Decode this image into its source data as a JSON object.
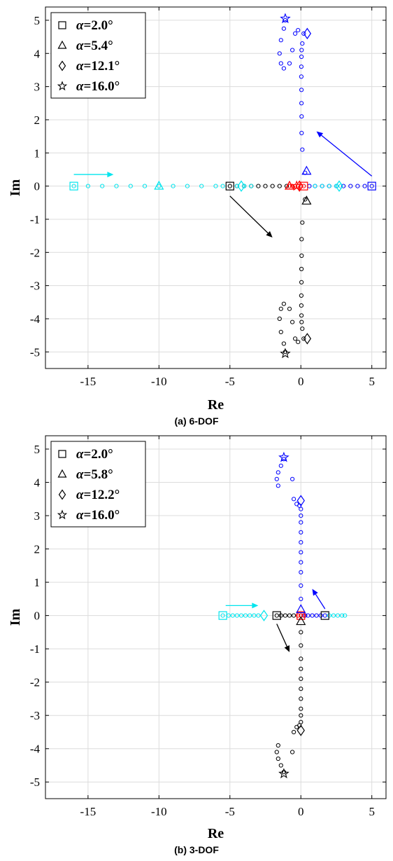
{
  "chart_data": [
    {
      "type": "scatter",
      "caption": "(a) 6-DOF",
      "xlabel": "Re",
      "ylabel": "Im",
      "xlim": [
        -18,
        6
      ],
      "ylim": [
        -5.5,
        5.4
      ],
      "xticks": [
        -15,
        -10,
        -5,
        0,
        5
      ],
      "yticks": [
        5,
        4,
        3,
        2,
        1,
        0,
        -1,
        -2,
        -3,
        -4,
        -5
      ],
      "xtick_labels": [
        "-15",
        "-10",
        "-5",
        "0",
        "5"
      ],
      "ytick_labels": [
        "5",
        "4",
        "3",
        "2",
        "1",
        "0",
        "-1",
        "-2",
        "-3",
        "-4",
        "-5"
      ],
      "grid": true,
      "legend_position": "top-left",
      "legend": [
        {
          "marker": "square",
          "symbol": "α",
          "label": "=2.0°"
        },
        {
          "marker": "triangle",
          "symbol": "α",
          "label": "=5.4°"
        },
        {
          "marker": "diamond",
          "symbol": "α",
          "label": "=12.1°"
        },
        {
          "marker": "star",
          "symbol": "α",
          "label": "=16.0°"
        }
      ],
      "colors": {
        "blue": "#0000ff",
        "black": "#000000",
        "cyan": "#00e5ee",
        "red": "#ff0000"
      },
      "series": [
        {
          "color": "blue",
          "points": [
            [
              5,
              0
            ],
            [
              4.5,
              0
            ],
            [
              4,
              0
            ],
            [
              3.5,
              0
            ],
            [
              3,
              0
            ],
            [
              2.5,
              0
            ],
            [
              2,
              0
            ],
            [
              1.5,
              0
            ],
            [
              1,
              0
            ],
            [
              0.6,
              0
            ],
            [
              0.3,
              0.4
            ],
            [
              0.1,
              1.1
            ],
            [
              0.05,
              1.6
            ],
            [
              0.05,
              2.1
            ],
            [
              0.04,
              2.5
            ],
            [
              0.04,
              2.9
            ],
            [
              0.03,
              3.3
            ],
            [
              0.03,
              3.6
            ],
            [
              0.04,
              3.9
            ],
            [
              0.05,
              4.1
            ],
            [
              0.1,
              4.3
            ],
            [
              0.2,
              4.6
            ],
            [
              -0.2,
              4.7
            ],
            [
              -0.4,
              4.6
            ],
            [
              -0.6,
              4.1
            ],
            [
              -0.8,
              3.7
            ],
            [
              -1.2,
              3.55
            ],
            [
              -1.4,
              3.7
            ],
            [
              -1.5,
              4.0
            ],
            [
              -1.4,
              4.4
            ],
            [
              -1.2,
              4.75
            ],
            [
              -1.1,
              5.0
            ]
          ]
        },
        {
          "color": "black",
          "points": [
            [
              -5,
              0
            ],
            [
              -4.5,
              0
            ],
            [
              -4,
              0
            ],
            [
              -3.5,
              0
            ],
            [
              -3,
              0
            ],
            [
              -2.5,
              0
            ],
            [
              -2,
              0
            ],
            [
              -1.5,
              0
            ],
            [
              -1,
              0
            ],
            [
              0.3,
              -0.4
            ],
            [
              0.1,
              -1.1
            ],
            [
              0.05,
              -1.6
            ],
            [
              0.05,
              -2.1
            ],
            [
              0.04,
              -2.5
            ],
            [
              0.04,
              -2.9
            ],
            [
              0.03,
              -3.3
            ],
            [
              0.03,
              -3.6
            ],
            [
              0.04,
              -3.9
            ],
            [
              0.05,
              -4.1
            ],
            [
              0.1,
              -4.3
            ],
            [
              0.2,
              -4.6
            ],
            [
              -0.2,
              -4.7
            ],
            [
              -0.4,
              -4.6
            ],
            [
              -0.6,
              -4.1
            ],
            [
              -0.8,
              -3.7
            ],
            [
              -1.2,
              -3.55
            ],
            [
              -1.4,
              -3.7
            ],
            [
              -1.5,
              -4.0
            ],
            [
              -1.4,
              -4.4
            ],
            [
              -1.2,
              -4.75
            ],
            [
              -1.1,
              -5.0
            ]
          ]
        },
        {
          "color": "cyan",
          "points": [
            [
              -16,
              0
            ],
            [
              -15,
              0
            ],
            [
              -14,
              0
            ],
            [
              -13,
              0
            ],
            [
              -12,
              0
            ],
            [
              -11,
              0
            ],
            [
              -10,
              0
            ],
            [
              -9,
              0
            ],
            [
              -8,
              0
            ],
            [
              -7,
              0
            ],
            [
              -6,
              0
            ],
            [
              -5.5,
              0
            ],
            [
              -4.5,
              0
            ],
            [
              -4,
              0
            ],
            [
              -3.5,
              0
            ],
            [
              1,
              0
            ],
            [
              1.5,
              0
            ],
            [
              2,
              0
            ],
            [
              2.5,
              0
            ],
            [
              2.8,
              0
            ]
          ]
        },
        {
          "color": "red",
          "points": [
            [
              -0.8,
              0
            ],
            [
              -0.6,
              0
            ],
            [
              -0.4,
              0
            ],
            [
              -0.2,
              0
            ],
            [
              0,
              0
            ],
            [
              0.2,
              0
            ]
          ]
        }
      ],
      "markers": [
        {
          "type": "square",
          "color": "cyan",
          "x": -16,
          "y": 0
        },
        {
          "type": "square",
          "color": "black",
          "x": -5,
          "y": 0
        },
        {
          "type": "square",
          "color": "blue",
          "x": 5,
          "y": 0
        },
        {
          "type": "square",
          "color": "red",
          "x": 0.2,
          "y": 0
        },
        {
          "type": "triangle",
          "color": "cyan",
          "x": -10,
          "y": 0
        },
        {
          "type": "triangle",
          "color": "red",
          "x": -0.8,
          "y": 0
        },
        {
          "type": "triangle",
          "color": "blue",
          "x": 0.4,
          "y": 0.45
        },
        {
          "type": "triangle",
          "color": "black",
          "x": 0.4,
          "y": -0.45
        },
        {
          "type": "diamond",
          "color": "cyan",
          "x": -4.2,
          "y": 0
        },
        {
          "type": "diamond",
          "color": "cyan",
          "x": 2.7,
          "y": 0
        },
        {
          "type": "diamond",
          "color": "red",
          "x": -0.1,
          "y": 0
        },
        {
          "type": "diamond",
          "color": "blue",
          "x": 0.45,
          "y": 4.6
        },
        {
          "type": "diamond",
          "color": "black",
          "x": 0.45,
          "y": -4.6
        },
        {
          "type": "star",
          "color": "blue",
          "x": -1.1,
          "y": 5.05
        },
        {
          "type": "star",
          "color": "black",
          "x": -1.1,
          "y": -5.05
        },
        {
          "type": "star",
          "color": "red",
          "x": -0.3,
          "y": 0
        }
      ],
      "arrows": [
        {
          "color": "cyan",
          "from": [
            -16,
            0.35
          ],
          "to": [
            -13.2,
            0.35
          ]
        },
        {
          "color": "blue",
          "from": [
            5,
            0.3
          ],
          "to": [
            1.1,
            1.65
          ]
        },
        {
          "color": "black",
          "from": [
            -5,
            -0.3
          ],
          "to": [
            -2,
            -1.55
          ]
        }
      ]
    },
    {
      "type": "scatter",
      "caption": "(b) 3-DOF",
      "xlabel": "Re",
      "ylabel": "Im",
      "xlim": [
        -18,
        6
      ],
      "ylim": [
        -5.5,
        5.4
      ],
      "xticks": [
        -15,
        -10,
        -5,
        0,
        5
      ],
      "yticks": [
        5,
        4,
        3,
        2,
        1,
        0,
        -1,
        -2,
        -3,
        -4,
        -5
      ],
      "xtick_labels": [
        "-15",
        "-10",
        "-5",
        "0",
        "5"
      ],
      "ytick_labels": [
        "5",
        "4",
        "3",
        "2",
        "1",
        "0",
        "-1",
        "-2",
        "-3",
        "-4",
        "-5"
      ],
      "grid": true,
      "legend_position": "top-left",
      "legend": [
        {
          "marker": "square",
          "symbol": "α",
          "label": "=2.0°"
        },
        {
          "marker": "triangle",
          "symbol": "α",
          "label": "=5.8°"
        },
        {
          "marker": "diamond",
          "symbol": "α",
          "label": "=12.2°"
        },
        {
          "marker": "star",
          "symbol": "α",
          "label": "=16.0°"
        }
      ],
      "colors": {
        "blue": "#0000ff",
        "black": "#000000",
        "cyan": "#00e5ee",
        "red": "#ff0000"
      },
      "series": [
        {
          "color": "blue",
          "points": [
            [
              1.7,
              0
            ],
            [
              1.4,
              0
            ],
            [
              1.1,
              0
            ],
            [
              0.8,
              0
            ],
            [
              0.5,
              0
            ],
            [
              0.3,
              0
            ],
            [
              0.0,
              0.5
            ],
            [
              0,
              0.9
            ],
            [
              0,
              1.3
            ],
            [
              0,
              1.6
            ],
            [
              0,
              1.9
            ],
            [
              0,
              2.2
            ],
            [
              0,
              2.5
            ],
            [
              0,
              2.8
            ],
            [
              0,
              3.0
            ],
            [
              0,
              3.2
            ],
            [
              -0.1,
              3.3
            ],
            [
              -0.3,
              3.35
            ],
            [
              -0.5,
              3.5
            ],
            [
              -0.6,
              4.1
            ],
            [
              -1.6,
              3.9
            ],
            [
              -1.7,
              4.1
            ],
            [
              -1.6,
              4.3
            ],
            [
              -1.4,
              4.5
            ],
            [
              -1.2,
              4.7
            ]
          ]
        },
        {
          "color": "black",
          "points": [
            [
              -1.7,
              0
            ],
            [
              -1.4,
              0
            ],
            [
              -1.1,
              0
            ],
            [
              -0.8,
              0
            ],
            [
              -0.5,
              0
            ],
            [
              0,
              -0.5
            ],
            [
              0,
              -0.9
            ],
            [
              0,
              -1.3
            ],
            [
              0,
              -1.6
            ],
            [
              0,
              -1.9
            ],
            [
              0,
              -2.2
            ],
            [
              0,
              -2.5
            ],
            [
              0,
              -2.8
            ],
            [
              0,
              -3.0
            ],
            [
              0,
              -3.2
            ],
            [
              -0.1,
              -3.3
            ],
            [
              -0.3,
              -3.35
            ],
            [
              -0.5,
              -3.5
            ],
            [
              -0.6,
              -4.1
            ],
            [
              -1.6,
              -3.9
            ],
            [
              -1.7,
              -4.1
            ],
            [
              -1.6,
              -4.3
            ],
            [
              -1.4,
              -4.5
            ],
            [
              -1.2,
              -4.7
            ]
          ]
        },
        {
          "color": "cyan",
          "points": [
            [
              -5.5,
              0
            ],
            [
              -5.1,
              0
            ],
            [
              -4.8,
              0
            ],
            [
              -4.5,
              0
            ],
            [
              -4.2,
              0
            ],
            [
              -3.9,
              0
            ],
            [
              -3.6,
              0
            ],
            [
              -3.3,
              0
            ],
            [
              -3.0,
              0
            ],
            [
              2.0,
              0
            ],
            [
              2.3,
              0
            ],
            [
              2.6,
              0
            ],
            [
              2.9,
              0
            ],
            [
              3.1,
              0
            ]
          ]
        },
        {
          "color": "red",
          "points": [
            [
              -0.2,
              0
            ],
            [
              0,
              0
            ],
            [
              0.2,
              0
            ]
          ]
        }
      ],
      "markers": [
        {
          "type": "square",
          "color": "cyan",
          "x": -5.5,
          "y": 0
        },
        {
          "type": "square",
          "color": "black",
          "x": -1.7,
          "y": 0
        },
        {
          "type": "square",
          "color": "black",
          "x": 1.7,
          "y": 0
        },
        {
          "type": "square",
          "color": "red",
          "x": 0,
          "y": 0
        },
        {
          "type": "triangle",
          "color": "blue",
          "x": 0,
          "y": 0.18
        },
        {
          "type": "triangle",
          "color": "black",
          "x": 0,
          "y": -0.18
        },
        {
          "type": "diamond",
          "color": "cyan",
          "x": -2.6,
          "y": 0
        },
        {
          "type": "diamond",
          "color": "blue",
          "x": 0,
          "y": 3.45
        },
        {
          "type": "diamond",
          "color": "black",
          "x": 0,
          "y": -3.45
        },
        {
          "type": "star",
          "color": "blue",
          "x": -1.2,
          "y": 4.75
        },
        {
          "type": "star",
          "color": "black",
          "x": -1.2,
          "y": -4.75
        }
      ],
      "arrows": [
        {
          "color": "cyan",
          "from": [
            -5.3,
            0.3
          ],
          "to": [
            -3.0,
            0.3
          ]
        },
        {
          "color": "blue",
          "from": [
            1.7,
            0.2
          ],
          "to": [
            0.8,
            0.8
          ]
        },
        {
          "color": "black",
          "from": [
            -1.7,
            -0.25
          ],
          "to": [
            -0.8,
            -1.1
          ]
        }
      ]
    }
  ]
}
